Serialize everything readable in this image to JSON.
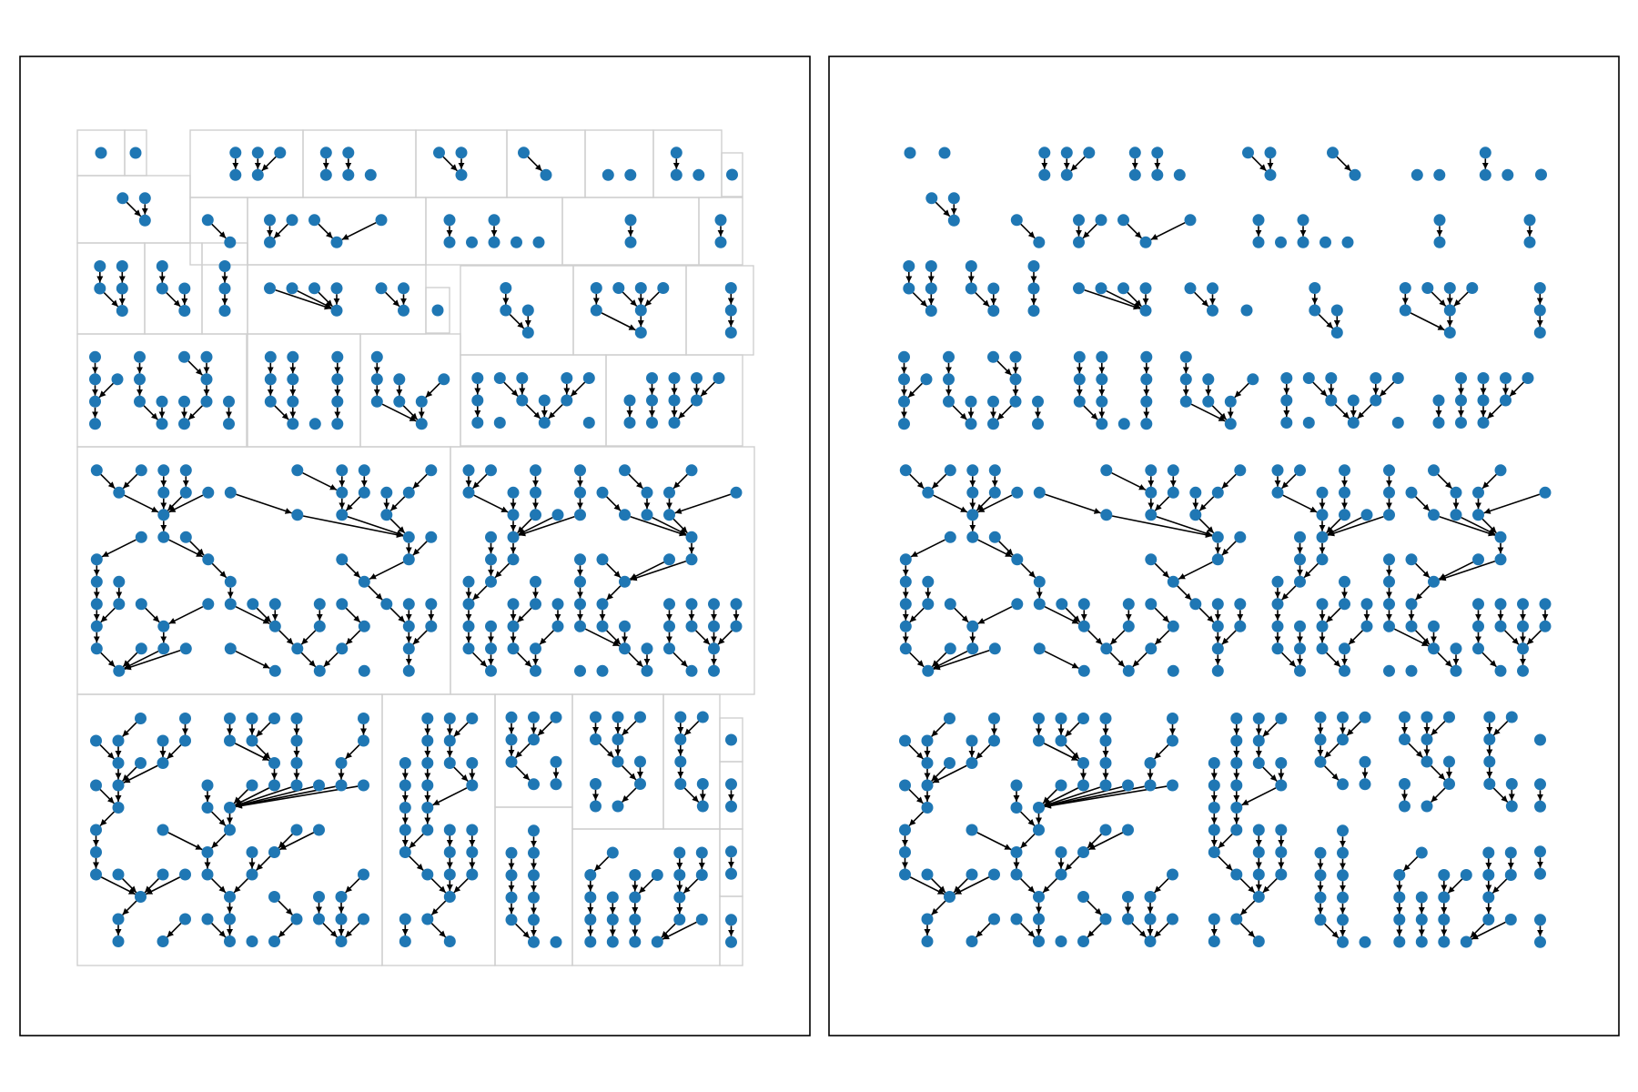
{
  "figure": {
    "background": "#ffffff",
    "node_color": "#1f77b4",
    "edge_color": "#000000",
    "box_color": "#cfcfcf",
    "node_shape": "circle",
    "edge_style": "directed-arrow"
  },
  "panels": [
    {
      "id": "left",
      "description_key": "packed-forest-with-bounding-boxes",
      "show_boxes": true
    },
    {
      "id": "right",
      "description_key": "packed-forest-without-boxes",
      "show_boxes": false
    }
  ],
  "legend": null,
  "title": null
}
